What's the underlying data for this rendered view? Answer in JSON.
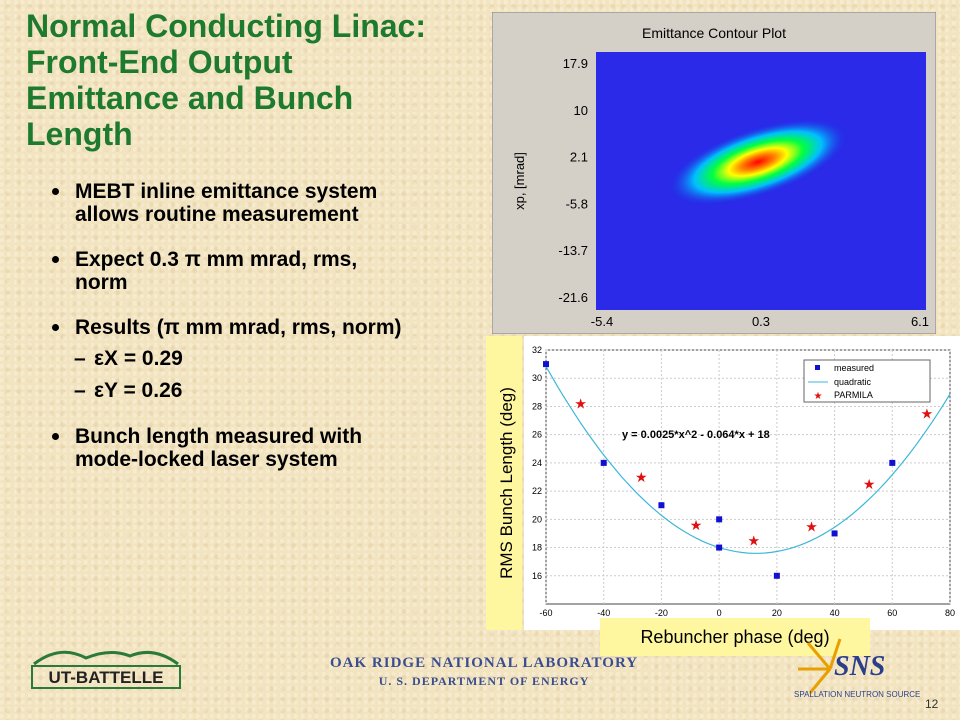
{
  "title": "Normal Conducting Linac: Front-End Output Emittance and Bunch Length",
  "bullets": [
    {
      "text": "MEBT inline emittance system allows routine measurement"
    },
    {
      "text": "Expect 0.3 π mm mrad, rms, norm"
    },
    {
      "text": "Results (π mm mrad, rms, norm)"
    },
    {
      "text": "Bunch length measured with mode-locked laser system"
    }
  ],
  "results": [
    {
      "label": "εX",
      "value": "= 0.29"
    },
    {
      "label": "εY",
      "value": "= 0.26"
    }
  ],
  "footer": {
    "org_line1": "OAK RIDGE NATIONAL LABORATORY",
    "org_line2": "U. S. DEPARTMENT OF ENERGY",
    "page_number": "12",
    "ut_logo_text": "UT-BATTELLE",
    "sns_logo_text": "SNS",
    "sns_subtext": "SPALLATION NEUTRON SOURCE"
  },
  "chart_data": [
    {
      "type": "heatmap",
      "title": "Emittance Contour Plot",
      "ylabel": "xp, [mrad]",
      "xlabel": "",
      "x_ticks": [
        "-5.4",
        "0.3",
        "6.1"
      ],
      "y_ticks": [
        "17.9",
        "10",
        "2.1",
        "-5.8",
        "-13.7",
        "-21.6"
      ],
      "xlim": [
        -5.4,
        6.1
      ],
      "ylim": [
        -21.6,
        17.9
      ],
      "peak": {
        "x": 0.3,
        "y": 1.0
      },
      "colormap": [
        "#2020e0",
        "#00ffff",
        "#00ff00",
        "#ffff00",
        "#ff0000"
      ]
    },
    {
      "type": "scatter",
      "xlabel": "Rebuncher phase (deg)",
      "ylabel": "RMS Bunch Length (deg)",
      "xlim": [
        -60,
        80
      ],
      "ylim": [
        14,
        32
      ],
      "x_ticks": [
        -60,
        -40,
        -20,
        0,
        20,
        40,
        60,
        80
      ],
      "y_ticks": [
        16,
        18,
        20,
        22,
        24,
        26,
        28,
        30,
        32
      ],
      "legend_position": "top-right",
      "annotation": "y = 0.0025*x^2 - 0.064*x + 18",
      "series": [
        {
          "name": "measured",
          "marker": "square",
          "color": "#1010d0",
          "points": [
            [
              -60,
              31
            ],
            [
              -40,
              24
            ],
            [
              -20,
              21
            ],
            [
              0,
              20
            ],
            [
              0,
              18
            ],
            [
              20,
              16
            ],
            [
              40,
              19
            ],
            [
              60,
              24
            ]
          ]
        },
        {
          "name": "quadratic",
          "marker": "line",
          "color": "#3cb8d8",
          "coefficients": [
            0.0025,
            -0.064,
            18
          ]
        },
        {
          "name": "PARMILA",
          "marker": "star",
          "color": "#e01010",
          "points": [
            [
              -48,
              28.2
            ],
            [
              -27,
              23
            ],
            [
              -8,
              19.6
            ],
            [
              12,
              18.5
            ],
            [
              32,
              19.5
            ],
            [
              52,
              22.5
            ],
            [
              72,
              27.5
            ]
          ]
        }
      ]
    }
  ]
}
